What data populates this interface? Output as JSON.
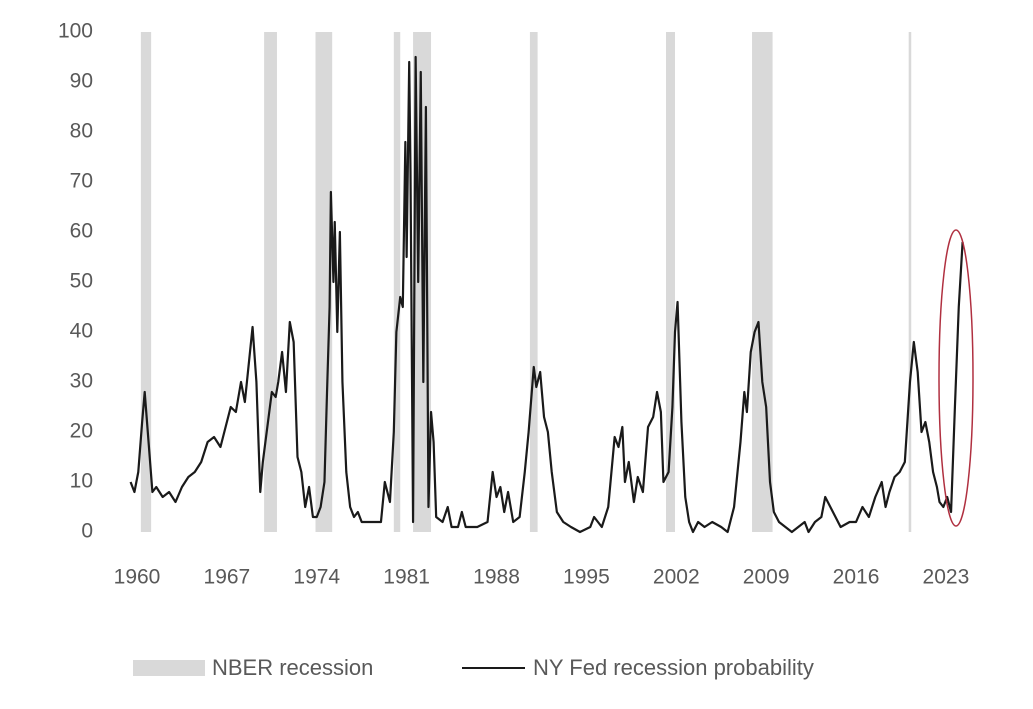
{
  "chart_data": {
    "type": "line",
    "x": [
      1959.5,
      1959.8,
      1960.1,
      1960.4,
      1960.6,
      1960.9,
      1961.2,
      1961.5,
      1962,
      1962.5,
      1963,
      1963.5,
      1964,
      1964.5,
      1965,
      1965.5,
      1966,
      1966.5,
      1967,
      1967.3,
      1967.7,
      1968.1,
      1968.4,
      1968.8,
      1969,
      1969.3,
      1969.6,
      1969.8,
      1970.2,
      1970.5,
      1970.8,
      1971,
      1971.3,
      1971.6,
      1971.9,
      1972.2,
      1972.5,
      1972.8,
      1973.1,
      1973.4,
      1973.7,
      1974,
      1974.3,
      1974.6,
      1974.8,
      1975,
      1975.1,
      1975.3,
      1975.4,
      1975.6,
      1975.8,
      1976,
      1976.3,
      1976.6,
      1976.9,
      1977.2,
      1977.5,
      1978,
      1978.5,
      1979,
      1979.3,
      1979.7,
      1980,
      1980.2,
      1980.5,
      1980.7,
      1980.9,
      1981,
      1981.2,
      1981.3,
      1981.5,
      1981.7,
      1981.9,
      1982.1,
      1982.3,
      1982.5,
      1982.7,
      1982.9,
      1983.1,
      1983.3,
      1983.8,
      1984.2,
      1984.5,
      1985,
      1985.3,
      1985.6,
      1986,
      1986.5,
      1987.3,
      1987.7,
      1988,
      1988.3,
      1988.6,
      1988.9,
      1989.3,
      1989.8,
      1990.2,
      1990.5,
      1990.9,
      1991.1,
      1991.4,
      1991.7,
      1992,
      1992.3,
      1992.7,
      1993.2,
      1993.8,
      1994.5,
      1995.3,
      1995.6,
      1996.2,
      1996.7,
      1997.2,
      1997.5,
      1997.8,
      1998,
      1998.3,
      1998.7,
      1999,
      1999.4,
      1999.8,
      2000.2,
      2000.5,
      2000.8,
      2001,
      2001.4,
      2001.7,
      2001.9,
      2002.1,
      2002.4,
      2002.7,
      2003,
      2003.3,
      2003.7,
      2004.2,
      2004.8,
      2005.5,
      2006,
      2006.5,
      2007,
      2007.3,
      2007.5,
      2007.8,
      2008.1,
      2008.4,
      2008.7,
      2009,
      2009.3,
      2009.6,
      2010,
      2010.5,
      2011,
      2011.5,
      2012,
      2012.3,
      2012.8,
      2013.3,
      2013.6,
      2014,
      2014.4,
      2014.8,
      2015.5,
      2016,
      2016.5,
      2017,
      2017.5,
      2018,
      2018.3,
      2018.6,
      2019,
      2019.4,
      2019.8,
      2020.2,
      2020.5,
      2020.8,
      2021.1,
      2021.4,
      2021.7,
      2022,
      2022.3,
      2022.5,
      2022.8,
      2023.1,
      2023.4,
      2023.7,
      2024,
      2024.3
    ],
    "series": [
      {
        "name": "NY Fed recession probability",
        "color": "#1a1a1a",
        "values": [
          10,
          8,
          12,
          22,
          28,
          18,
          8,
          9,
          7,
          8,
          6,
          9,
          11,
          12,
          14,
          18,
          19,
          17,
          22,
          25,
          24,
          30,
          26,
          36,
          41,
          30,
          8,
          14,
          22,
          28,
          27,
          30,
          36,
          28,
          42,
          38,
          15,
          12,
          5,
          9,
          3,
          3,
          5,
          10,
          28,
          45,
          68,
          50,
          62,
          40,
          60,
          30,
          12,
          5,
          3,
          4,
          2,
          2,
          2,
          2,
          10,
          6,
          20,
          40,
          47,
          45,
          78,
          55,
          94,
          72,
          2,
          95,
          50,
          92,
          30,
          85,
          5,
          24,
          18,
          3,
          2,
          5,
          1,
          1,
          4,
          1,
          1,
          1,
          2,
          12,
          7,
          9,
          4,
          8,
          2,
          3,
          12,
          20,
          33,
          29,
          32,
          23,
          20,
          12,
          4,
          2,
          1,
          0,
          1,
          3,
          1,
          5,
          19,
          17,
          21,
          10,
          14,
          6,
          11,
          8,
          21,
          23,
          28,
          24,
          10,
          12,
          25,
          40,
          46,
          22,
          7,
          2,
          0,
          2,
          1,
          2,
          1,
          0,
          5,
          18,
          28,
          24,
          36,
          40,
          42,
          30,
          25,
          10,
          4,
          2,
          1,
          0,
          1,
          2,
          0,
          2,
          3,
          7,
          5,
          3,
          1,
          2,
          2,
          5,
          3,
          7,
          10,
          5,
          8,
          11,
          12,
          14,
          30,
          38,
          32,
          20,
          22,
          18,
          12,
          9,
          6,
          5,
          7,
          4,
          25,
          45,
          58
        ]
      }
    ],
    "recessions": {
      "name": "NBER recession",
      "color": "#d9d9d9",
      "ranges": [
        [
          1960.3,
          1961.1
        ],
        [
          1969.9,
          1970.9
        ],
        [
          1973.9,
          1975.2
        ],
        [
          1980.0,
          1980.5
        ],
        [
          1981.5,
          1982.9
        ],
        [
          1990.6,
          1991.2
        ],
        [
          2001.2,
          2001.9
        ],
        [
          2007.9,
          2009.5
        ],
        [
          2020.1,
          2020.3
        ]
      ]
    },
    "xlim": [
      1959,
      2025
    ],
    "xticks": [
      1960,
      1967,
      1974,
      1981,
      1988,
      1995,
      2002,
      2009,
      2016,
      2023
    ],
    "ylim": [
      0,
      100
    ],
    "yticks": [
      0,
      10,
      20,
      30,
      40,
      50,
      60,
      70,
      80,
      90,
      100
    ],
    "grid": false
  }
}
